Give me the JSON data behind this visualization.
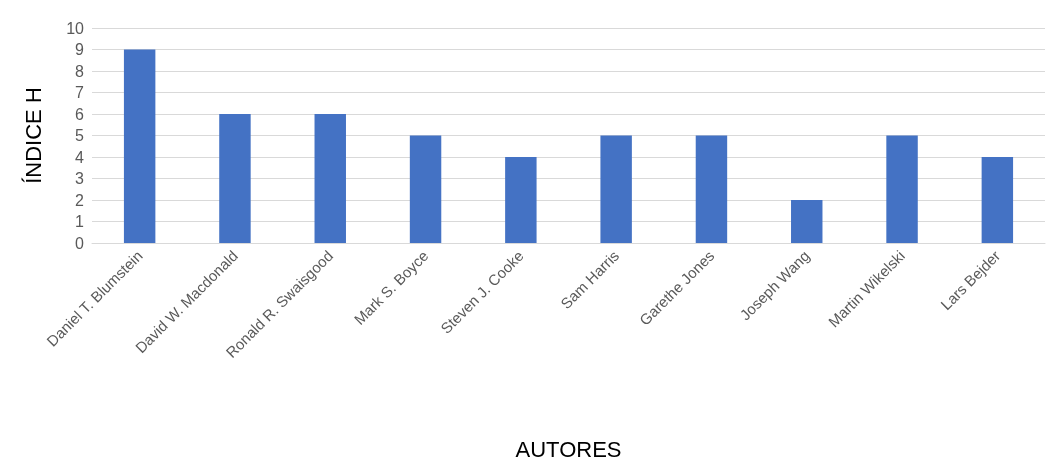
{
  "chart_data": {
    "type": "bar",
    "xlabel": "AUTORES",
    "ylabel": "ÍNDICE H",
    "categories": [
      "Daniel T. Blumstein",
      "David W. Macdonald",
      "Ronald R. Swaisgood",
      "Mark S. Boyce",
      "Steven J. Cooke",
      "Sam Harris",
      "Garethe Jones",
      "Joseph Wang",
      "Martin Wikelski",
      "Lars Bejder"
    ],
    "values": [
      9,
      6,
      6,
      5,
      4,
      5,
      5,
      2,
      5,
      4
    ],
    "color": "#4472c4",
    "ylim": [
      0,
      10
    ],
    "yticks": [
      0,
      1,
      2,
      3,
      4,
      5,
      6,
      7,
      8,
      9,
      10
    ],
    "grid": "y"
  }
}
